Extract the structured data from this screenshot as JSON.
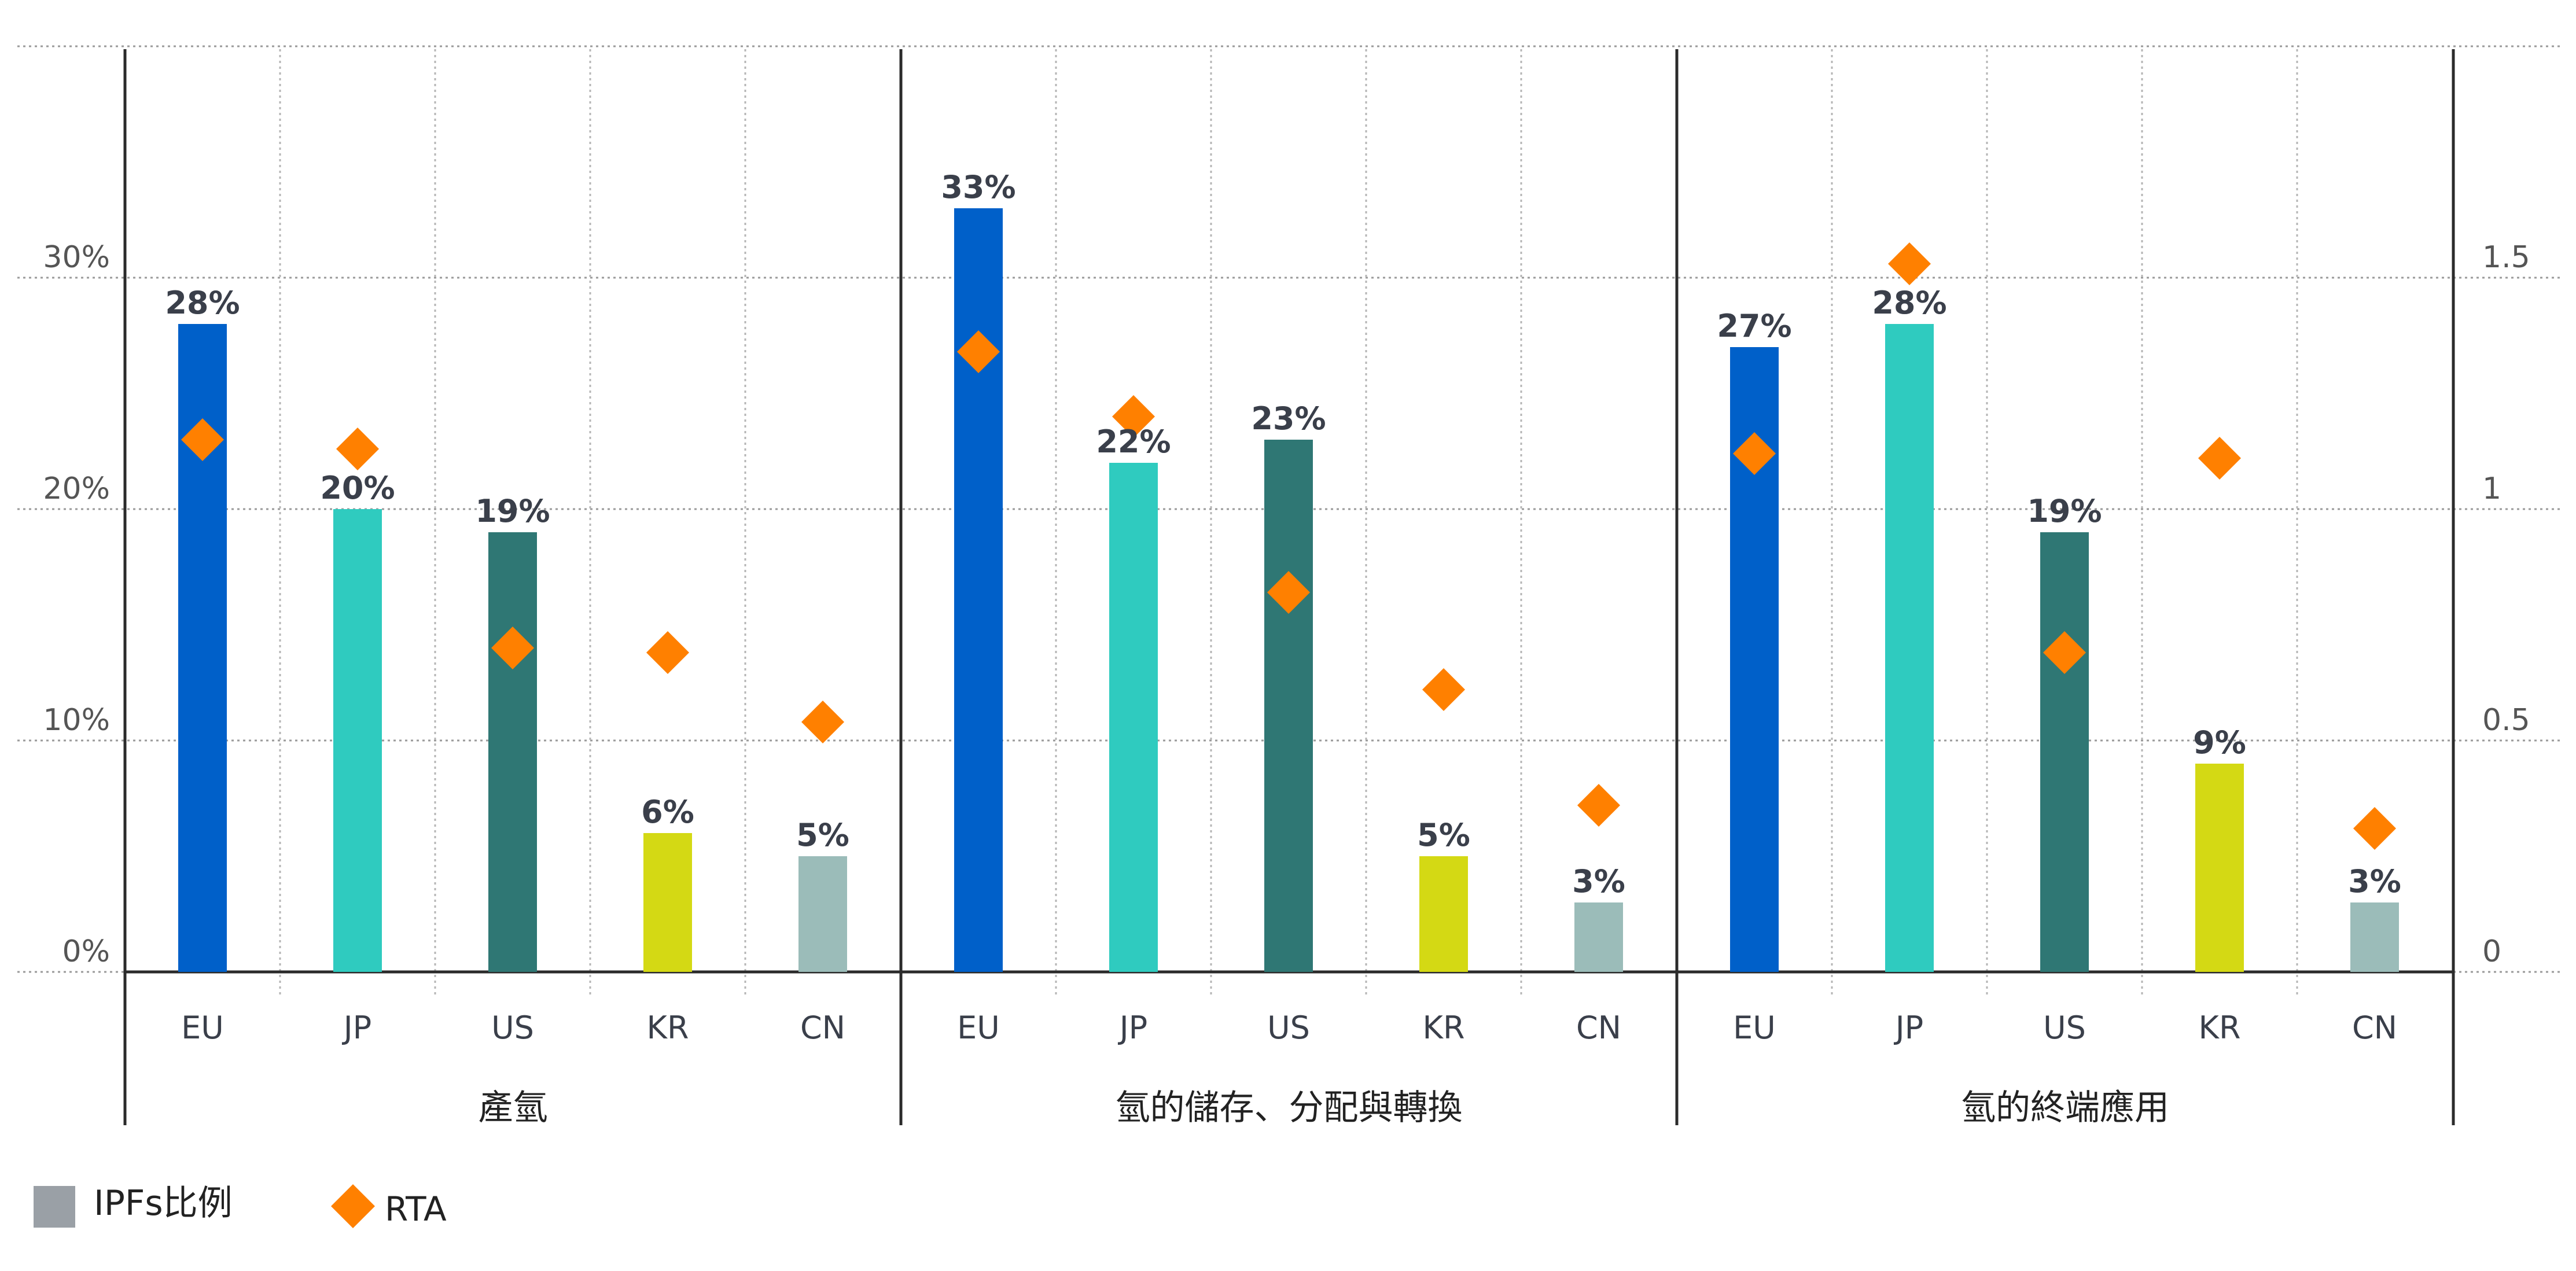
{
  "chart_data": {
    "type": "bar",
    "left_axis": {
      "ylim": [
        0,
        0.4
      ],
      "ticks": [
        "0%",
        "10%",
        "20%",
        "30%"
      ]
    },
    "right_axis": {
      "ylim": [
        0,
        2.0
      ],
      "ticks": [
        "0",
        "0.5",
        "1",
        "1.5"
      ]
    },
    "categories": [
      "EU",
      "JP",
      "US",
      "KR",
      "CN"
    ],
    "colors": {
      "EU": "#0060c9",
      "JP": "#2fcbbf",
      "US": "#2f7774",
      "KR": "#d4d914",
      "CN": "#9bbcb9",
      "RTA": "#ff8000"
    },
    "groups": [
      {
        "name": "產氫",
        "ipf_values": [
          0.28,
          0.2,
          0.19,
          0.06,
          0.05
        ],
        "ipf_labels": [
          "28%",
          "20%",
          "19%",
          "6%",
          "5%"
        ],
        "rta_values": [
          1.15,
          1.13,
          0.7,
          0.69,
          0.54
        ]
      },
      {
        "name": "氫的儲存、分配與轉換",
        "ipf_values": [
          0.33,
          0.22,
          0.23,
          0.05,
          0.03
        ],
        "ipf_labels": [
          "33%",
          "22%",
          "23%",
          "5%",
          "3%"
        ],
        "rta_values": [
          1.34,
          1.2,
          0.82,
          0.61,
          0.36
        ]
      },
      {
        "name": "氫的終端應用",
        "ipf_values": [
          0.27,
          0.28,
          0.19,
          0.09,
          0.03
        ],
        "ipf_labels": [
          "27%",
          "28%",
          "19%",
          "9%",
          "3%"
        ],
        "rta_values": [
          1.12,
          1.53,
          0.69,
          1.11,
          0.31
        ]
      }
    ],
    "legend": {
      "bar_label": "IPFs比例",
      "bar_swatch_color": "#9aa0a6",
      "marker_label": "RTA"
    }
  }
}
